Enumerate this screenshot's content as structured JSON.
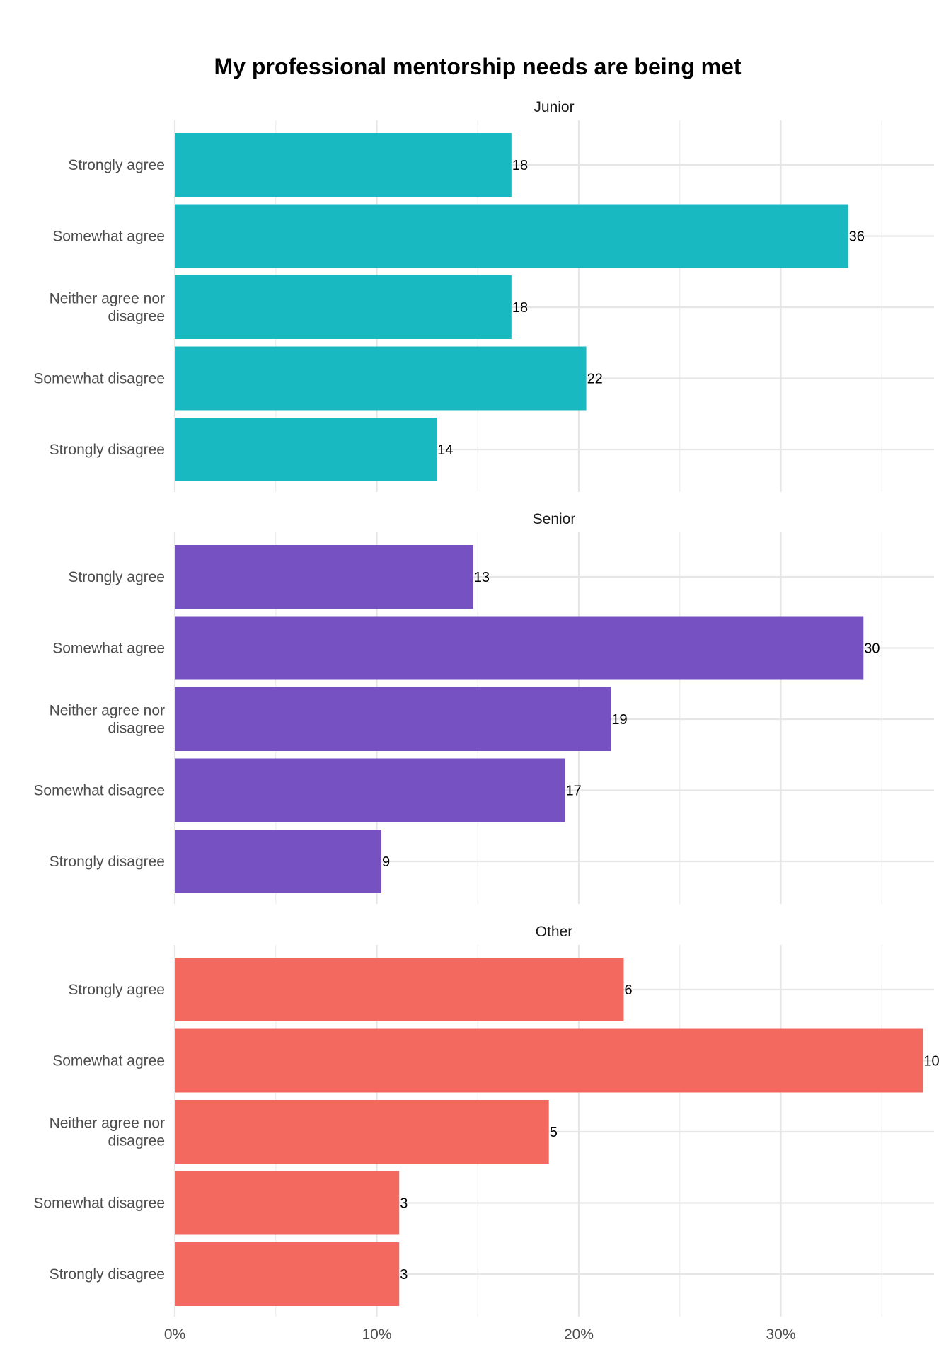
{
  "chart_data": {
    "type": "bar",
    "orientation": "horizontal",
    "title": "My professional mentorship needs are being met",
    "xlabel": "",
    "ylabel": "",
    "x_tick_labels": [
      "0%",
      "10%",
      "20%",
      "30%"
    ],
    "xlim": [
      0,
      0.375
    ],
    "grid": true,
    "categories": [
      "Strongly agree",
      "Somewhat agree",
      "Neither agree nor disagree",
      "Somewhat disagree",
      "Strongly disagree"
    ],
    "category_display": [
      [
        "Strongly agree"
      ],
      [
        "Somewhat agree"
      ],
      [
        "Neither agree nor",
        "disagree"
      ],
      [
        "Somewhat disagree"
      ],
      [
        "Strongly disagree"
      ]
    ],
    "panels": [
      {
        "name": "Junior",
        "color": "#19B9C2",
        "counts": [
          18,
          36,
          18,
          22,
          14
        ]
      },
      {
        "name": "Senior",
        "color": "#7551C2",
        "counts": [
          13,
          30,
          19,
          17,
          9
        ]
      },
      {
        "name": "Other",
        "color": "#F4695F",
        "counts": [
          6,
          10,
          5,
          3,
          3
        ]
      }
    ]
  }
}
